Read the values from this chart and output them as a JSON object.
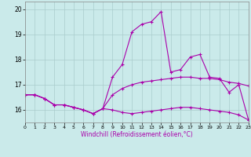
{
  "xlabel": "Windchill (Refroidissement éolien,°C)",
  "bg_color": "#caeaea",
  "line_color": "#aa00aa",
  "grid_color": "#aacccc",
  "xlim": [
    0,
    23
  ],
  "ylim": [
    15.5,
    20.3
  ],
  "yticks": [
    16,
    17,
    18,
    19,
    20
  ],
  "xticks": [
    0,
    1,
    2,
    3,
    4,
    5,
    6,
    7,
    8,
    9,
    10,
    11,
    12,
    13,
    14,
    15,
    16,
    17,
    18,
    19,
    20,
    21,
    22,
    23
  ],
  "series1_x": [
    0,
    1,
    2,
    3,
    4,
    5,
    6,
    7,
    8,
    9,
    10,
    11,
    12,
    13,
    14,
    15,
    16,
    17,
    18,
    19,
    20,
    21,
    22,
    23
  ],
  "series1_y": [
    16.6,
    16.6,
    16.45,
    16.2,
    16.2,
    16.1,
    16.0,
    15.85,
    16.05,
    16.6,
    16.85,
    17.0,
    17.1,
    17.15,
    17.2,
    17.25,
    17.3,
    17.3,
    17.25,
    17.25,
    17.2,
    17.1,
    17.05,
    16.95
  ],
  "series2_x": [
    0,
    1,
    2,
    3,
    4,
    5,
    6,
    7,
    8,
    9,
    10,
    11,
    12,
    13,
    14,
    15,
    16,
    17,
    18,
    19,
    20,
    21,
    22,
    23
  ],
  "series2_y": [
    16.6,
    16.6,
    16.45,
    16.2,
    16.2,
    16.1,
    16.0,
    15.85,
    16.05,
    17.3,
    17.8,
    19.1,
    19.4,
    19.5,
    19.9,
    17.5,
    17.6,
    18.1,
    18.2,
    17.3,
    17.25,
    16.7,
    17.0,
    15.6
  ],
  "series3_x": [
    0,
    1,
    2,
    3,
    4,
    5,
    6,
    7,
    8,
    9,
    10,
    11,
    12,
    13,
    14,
    15,
    16,
    17,
    18,
    19,
    20,
    21,
    22,
    23
  ],
  "series3_y": [
    16.6,
    16.6,
    16.45,
    16.2,
    16.2,
    16.1,
    16.0,
    15.85,
    16.05,
    16.0,
    15.9,
    15.85,
    15.9,
    15.95,
    16.0,
    16.05,
    16.1,
    16.1,
    16.05,
    16.0,
    15.95,
    15.9,
    15.8,
    15.6
  ]
}
